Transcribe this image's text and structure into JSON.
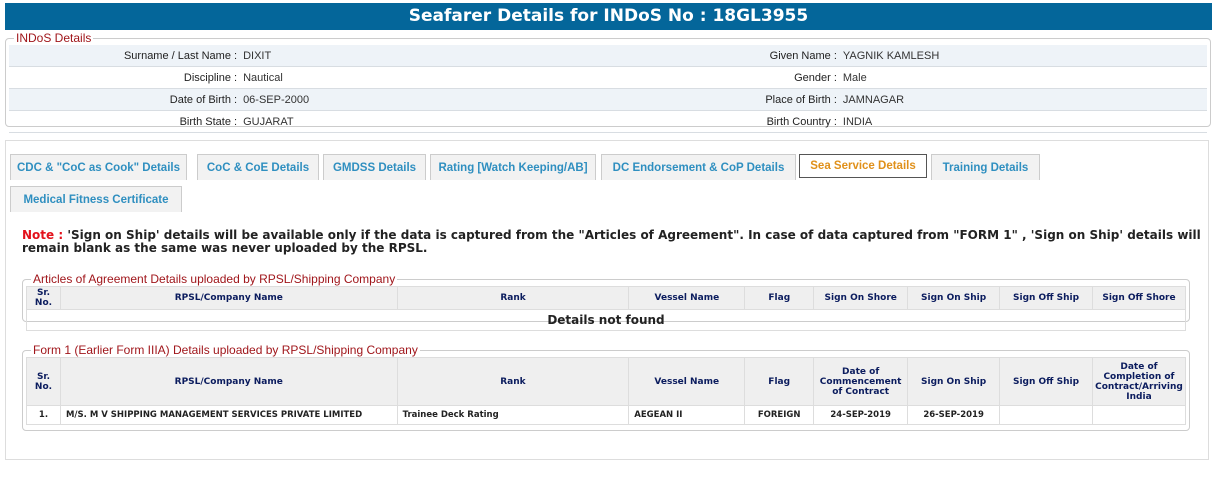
{
  "title": "Seafarer Details for INDoS No : 18GL3955",
  "indos": {
    "legend": "INDoS Details",
    "rows": [
      {
        "l1": "Surname / Last Name :",
        "v1": "DIXIT",
        "l2": "Given Name :",
        "v2": "YAGNIK KAMLESH"
      },
      {
        "l1": "Discipline :",
        "v1": "Nautical",
        "l2": "Gender :",
        "v2": "Male"
      },
      {
        "l1": "Date of Birth :",
        "v1": "06-SEP-2000",
        "l2": "Place of Birth :",
        "v2": "JAMNAGAR"
      },
      {
        "l1": "Birth State :",
        "v1": "GUJARAT",
        "l2": "Birth Country :",
        "v2": "INDIA"
      }
    ]
  },
  "tabs": [
    "CDC & \"CoC as Cook\" Details",
    "CoC & CoE Details",
    "GMDSS Details",
    "Rating [Watch Keeping/AB]",
    "DC Endorsement & CoP Details",
    "Sea Service Details",
    "Training Details",
    "Medical Fitness Certificate"
  ],
  "active_tab": "Sea Service Details",
  "note": {
    "prefix": "Note :",
    "text": " 'Sign on Ship' details will be available only if the data is captured from the \"Articles of Agreement\". In case of data captured from \"FORM 1\" , 'Sign on Ship' details will remain blank as the same was never uploaded by the RPSL."
  },
  "articles": {
    "legend": "Articles of Agreement Details uploaded by RPSL/Shipping Company",
    "headers": [
      "Sr. No.",
      "RPSL/Company Name",
      "Rank",
      "Vessel Name",
      "Flag",
      "Sign On Shore",
      "Sign On Ship",
      "Sign Off Ship",
      "Sign Off Shore"
    ],
    "empty": "Details not found"
  },
  "form1": {
    "legend": "Form 1 (Earlier Form IIIA) Details uploaded by RPSL/Shipping Company",
    "headers": [
      "Sr. No.",
      "RPSL/Company Name",
      "Rank",
      "Vessel Name",
      "Flag",
      "Date of Commencement of Contract",
      "Sign On Ship",
      "Sign Off Ship",
      "Date of Completion of Contract/Arriving India"
    ],
    "rows": [
      [
        "1.",
        "M/S. M V SHIPPING MANAGEMENT SERVICES PRIVATE LIMITED",
        "Trainee Deck Rating",
        "AEGEAN II",
        "FOREIGN",
        "24-SEP-2019",
        "26-SEP-2019",
        "",
        ""
      ]
    ]
  }
}
